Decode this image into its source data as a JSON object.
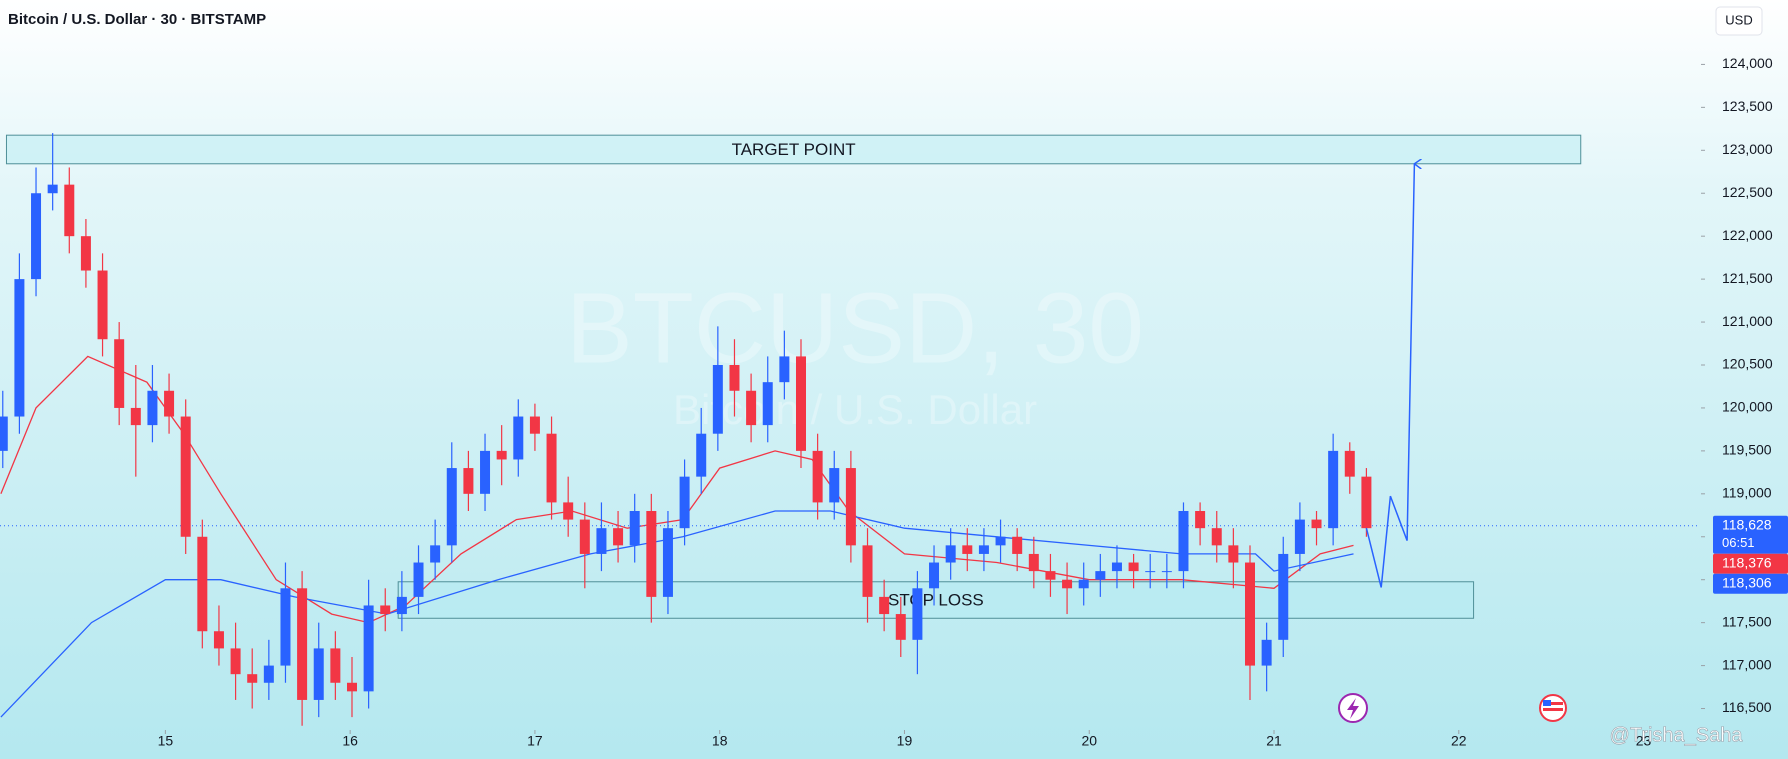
{
  "header": {
    "title": "Bitcoin / U.S. Dollar · 30 · BITSTAMP",
    "currency": "USD"
  },
  "chart_data": {
    "type": "candlestick",
    "up_color": "#2962ff",
    "down_color": "#f23645",
    "xlim": [
      14.105,
      23.3
    ],
    "ylim": [
      116250,
      124750
    ],
    "xticks": [
      15,
      16,
      17,
      18,
      19,
      20,
      21,
      22,
      23
    ],
    "yticks": [
      {
        "value": 116500,
        "label": "116,500"
      },
      {
        "value": 117000,
        "label": "117,000"
      },
      {
        "value": 117500,
        "label": "117,500"
      },
      {
        "value": 118000,
        "label": "118,000"
      },
      {
        "value": 118500,
        "label": "118,500"
      },
      {
        "value": 119000,
        "label": "119,000"
      },
      {
        "value": 119500,
        "label": "119,500"
      },
      {
        "value": 120000,
        "label": "120,000"
      },
      {
        "value": 120500,
        "label": "120,500"
      },
      {
        "value": 121000,
        "label": "121,000"
      },
      {
        "value": 121500,
        "label": "121,500"
      },
      {
        "value": 122000,
        "label": "122,000"
      },
      {
        "value": 122500,
        "label": "122,500"
      },
      {
        "value": 123000,
        "label": "123,000"
      },
      {
        "value": 123500,
        "label": "123,500"
      },
      {
        "value": 124000,
        "label": "124,000"
      }
    ],
    "grid": false,
    "x": [
      14.12,
      14.21,
      14.3,
      14.39,
      14.48,
      14.57,
      14.66,
      14.75,
      14.84,
      14.93,
      15.02,
      15.11,
      15.2,
      15.29,
      15.38,
      15.47,
      15.56,
      15.65,
      15.74,
      15.83,
      15.92,
      16.01,
      16.1,
      16.19,
      16.28,
      16.37,
      16.46,
      16.55,
      16.64,
      16.73,
      16.82,
      16.91,
      17.0,
      17.09,
      17.18,
      17.27,
      17.36,
      17.45,
      17.54,
      17.63,
      17.72,
      17.81,
      17.9,
      17.99,
      18.08,
      18.17,
      18.26,
      18.35,
      18.44,
      18.53,
      18.62,
      18.71,
      18.8,
      18.89,
      18.98,
      19.07,
      19.16,
      19.25,
      19.34,
      19.43,
      19.52,
      19.61,
      19.7,
      19.79,
      19.88,
      19.97,
      20.06,
      20.15,
      20.24,
      20.33,
      20.42,
      20.51,
      20.6,
      20.69,
      20.78,
      20.87,
      20.96,
      21.05,
      21.14,
      21.23,
      21.32,
      21.41,
      21.5
    ],
    "open": [
      119500,
      119900,
      121500,
      122500,
      122600,
      122000,
      121600,
      120800,
      120000,
      119800,
      120200,
      119900,
      118500,
      117400,
      117200,
      116900,
      116800,
      117000,
      117900,
      116600,
      117200,
      116800,
      116700,
      117700,
      117600,
      117800,
      118200,
      118400,
      119300,
      119000,
      119500,
      119400,
      119900,
      119700,
      118900,
      118700,
      118300,
      118600,
      118400,
      118800,
      117800,
      118600,
      119200,
      119700,
      120500,
      120200,
      119800,
      120300,
      120600,
      119500,
      118900,
      119300,
      118400,
      117800,
      117600,
      117300,
      117900,
      118200,
      118400,
      118300,
      118400,
      118500,
      118300,
      118100,
      118000,
      117900,
      118000,
      118100,
      118200,
      118100,
      118100,
      118100,
      118800,
      118600,
      118400,
      118200,
      117000,
      117300,
      118300,
      118700,
      118600,
      119500,
      119200
    ],
    "high": [
      120200,
      121800,
      122800,
      123200,
      122800,
      122200,
      121800,
      121000,
      120500,
      120500,
      120400,
      120100,
      118700,
      117700,
      117500,
      117200,
      117300,
      118200,
      118100,
      117500,
      117400,
      117100,
      118000,
      117900,
      118100,
      118400,
      118700,
      119600,
      119500,
      119700,
      119800,
      120100,
      120050,
      119900,
      119200,
      118900,
      118900,
      118800,
      119000,
      119000,
      118800,
      119400,
      120000,
      120950,
      120800,
      120400,
      120600,
      120900,
      120800,
      119700,
      119500,
      119500,
      118600,
      118000,
      117800,
      118100,
      118400,
      118600,
      118600,
      118600,
      118700,
      118600,
      118500,
      118300,
      118200,
      118200,
      118300,
      118400,
      118300,
      118300,
      118300,
      118900,
      118900,
      118800,
      118600,
      118400,
      117500,
      118500,
      118900,
      118800,
      119700,
      119600,
      119300
    ],
    "low": [
      119300,
      119700,
      121300,
      122300,
      121800,
      121400,
      120600,
      119800,
      119200,
      119600,
      119700,
      118300,
      117200,
      117000,
      116600,
      116500,
      116600,
      116800,
      116300,
      116400,
      116600,
      116400,
      116500,
      117400,
      117400,
      117600,
      118000,
      118200,
      118800,
      118800,
      119100,
      119200,
      119500,
      118700,
      118500,
      117900,
      118100,
      118200,
      118200,
      117500,
      117600,
      118400,
      119000,
      119500,
      119900,
      119600,
      119600,
      120100,
      119300,
      118700,
      118700,
      118200,
      117500,
      117400,
      117100,
      116900,
      117700,
      118000,
      118100,
      118100,
      118200,
      118100,
      117900,
      117800,
      117600,
      117700,
      117800,
      117900,
      117900,
      117900,
      117900,
      117900,
      118400,
      118200,
      117900,
      116600,
      116700,
      117100,
      118100,
      118400,
      118400,
      119000,
      118500
    ],
    "close": [
      119900,
      121500,
      122500,
      122600,
      122000,
      121600,
      120800,
      120000,
      119800,
      120200,
      119900,
      118500,
      117400,
      117200,
      116900,
      116800,
      117000,
      117900,
      116600,
      117200,
      116800,
      116700,
      117700,
      117600,
      117800,
      118200,
      118400,
      119300,
      119000,
      119500,
      119400,
      119900,
      119700,
      118900,
      118700,
      118300,
      118600,
      118400,
      118800,
      117800,
      118600,
      119200,
      119700,
      120500,
      120200,
      119800,
      120300,
      120600,
      119500,
      118900,
      119300,
      118400,
      117800,
      117600,
      117300,
      117900,
      118200,
      118400,
      118300,
      118400,
      118500,
      118300,
      118100,
      118000,
      117900,
      118000,
      118100,
      118200,
      118100,
      118100,
      118100,
      118800,
      118600,
      118400,
      118200,
      117000,
      117300,
      118300,
      118700,
      118600,
      119500,
      119200,
      118600
    ],
    "lines": [
      {
        "color": "#f23645",
        "x": [
          14.11,
          14.3,
          14.58,
          14.9,
          15.1,
          15.3,
          15.6,
          15.9,
          16.1,
          16.3,
          16.6,
          16.9,
          17.2,
          17.5,
          17.8,
          18.0,
          18.3,
          18.5,
          18.7,
          19.0,
          19.5,
          20.0,
          20.5,
          21.0,
          21.25,
          21.43
        ],
        "values": [
          119000,
          120000,
          120600,
          120300,
          119700,
          119000,
          118000,
          117600,
          117500,
          117700,
          118300,
          118700,
          118800,
          118600,
          118700,
          119300,
          119500,
          119400,
          118800,
          118300,
          118200,
          118000,
          118000,
          117900,
          118300,
          118400
        ]
      },
      {
        "color": "#2962ff",
        "x": [
          14.11,
          14.6,
          15.0,
          15.3,
          15.7,
          16.2,
          16.8,
          17.3,
          17.8,
          18.3,
          18.6,
          19.0,
          19.5,
          20.0,
          20.5,
          20.9,
          21.0,
          21.43
        ],
        "values": [
          116400,
          117500,
          118000,
          118000,
          117800,
          117600,
          118000,
          118300,
          118500,
          118800,
          118800,
          118600,
          118500,
          118400,
          118300,
          118300,
          118100,
          118300
        ]
      }
    ],
    "zones": [
      {
        "label": "TARGET POINT",
        "x": [
          14.14,
          22.66
        ],
        "y": [
          122843,
          123176
        ]
      },
      {
        "label": "STOP LOSS",
        "x": [
          16.26,
          22.08
        ],
        "y": [
          117551,
          117976
        ]
      }
    ],
    "projection": {
      "color": "#2962ff",
      "x": [
        21.5,
        21.58,
        21.63,
        21.72,
        21.76
      ],
      "values": [
        118601,
        117910,
        118973,
        118455,
        122843
      ]
    },
    "last_price": {
      "value": 118628,
      "label": "118,628",
      "color": "#2962ff"
    },
    "countdown": "06:51",
    "price_labels": [
      {
        "value": 118376,
        "label": "118,376",
        "color": "#f23645"
      },
      {
        "value": 118306,
        "label": "118,306",
        "color": "#2962ff"
      }
    ],
    "watermark": {
      "symbol": "BTCUSD, 30",
      "description": "Bitcoin / U.S. Dollar"
    }
  },
  "attribution": "@Trisha_Saha"
}
